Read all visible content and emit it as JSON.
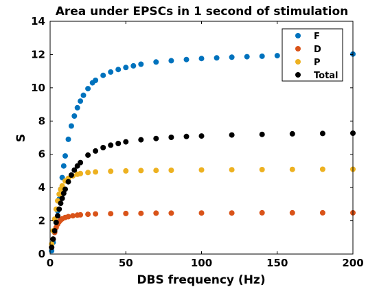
{
  "chart_data": {
    "type": "scatter",
    "title": "Area under EPSCs in 1 second of stimulation",
    "xlabel": "DBS frequency (Hz)",
    "ylabel": "S",
    "xlim": [
      0,
      200
    ],
    "ylim": [
      0,
      14
    ],
    "xticks": [
      0,
      50,
      100,
      150,
      200
    ],
    "yticks": [
      0,
      2,
      4,
      6,
      8,
      10,
      12,
      14
    ],
    "grid": false,
    "legend_position": "top-right",
    "series": [
      {
        "name": "F",
        "color": "#0072BD",
        "x": [
          1,
          2,
          3,
          4,
          5,
          6,
          7,
          8,
          9,
          10,
          12,
          14,
          16,
          18,
          20,
          22,
          25,
          28,
          30,
          35,
          40,
          45,
          50,
          55,
          60,
          70,
          80,
          90,
          100,
          110,
          120,
          130,
          140,
          150,
          160,
          170,
          180,
          190,
          200
        ],
        "y": [
          0.2,
          0.7,
          1.3,
          1.9,
          2.6,
          3.3,
          3.9,
          4.6,
          5.3,
          5.9,
          6.9,
          7.7,
          8.3,
          8.8,
          9.2,
          9.55,
          9.95,
          10.3,
          10.45,
          10.75,
          10.95,
          11.1,
          11.22,
          11.32,
          11.42,
          11.55,
          11.63,
          11.7,
          11.76,
          11.8,
          11.84,
          11.87,
          11.9,
          11.93,
          11.95,
          11.97,
          11.99,
          12.01,
          12.03
        ]
      },
      {
        "name": "D",
        "color": "#D95319",
        "x": [
          1,
          2,
          3,
          4,
          5,
          6,
          7,
          8,
          10,
          12,
          15,
          18,
          20,
          25,
          30,
          40,
          50,
          60,
          70,
          80,
          100,
          120,
          140,
          160,
          180,
          200
        ],
        "y": [
          0.4,
          0.9,
          1.3,
          1.6,
          1.8,
          1.95,
          2.05,
          2.12,
          2.2,
          2.25,
          2.3,
          2.34,
          2.36,
          2.39,
          2.41,
          2.43,
          2.44,
          2.45,
          2.46,
          2.46,
          2.47,
          2.47,
          2.48,
          2.48,
          2.48,
          2.48
        ]
      },
      {
        "name": "P",
        "color": "#EDB120",
        "x": [
          1,
          2,
          3,
          4,
          5,
          6,
          7,
          8,
          10,
          12,
          15,
          18,
          20,
          25,
          30,
          40,
          50,
          60,
          70,
          80,
          100,
          120,
          140,
          160,
          180,
          200
        ],
        "y": [
          0.6,
          1.4,
          2.1,
          2.7,
          3.2,
          3.6,
          3.9,
          4.1,
          4.4,
          4.55,
          4.7,
          4.8,
          4.84,
          4.9,
          4.94,
          4.98,
          5.0,
          5.02,
          5.03,
          5.04,
          5.06,
          5.07,
          5.08,
          5.09,
          5.1,
          5.1
        ]
      },
      {
        "name": "Total",
        "color": "#000000",
        "x": [
          1,
          2,
          3,
          4,
          5,
          6,
          7,
          8,
          9,
          10,
          12,
          14,
          16,
          18,
          20,
          25,
          30,
          35,
          40,
          45,
          50,
          60,
          70,
          80,
          90,
          100,
          120,
          140,
          160,
          180,
          200
        ],
        "y": [
          0.4,
          0.9,
          1.4,
          1.9,
          2.3,
          2.7,
          3.05,
          3.35,
          3.65,
          3.9,
          4.35,
          4.75,
          5.05,
          5.3,
          5.5,
          5.95,
          6.2,
          6.4,
          6.55,
          6.65,
          6.75,
          6.87,
          6.95,
          7.02,
          7.07,
          7.1,
          7.16,
          7.2,
          7.23,
          7.25,
          7.27
        ]
      }
    ]
  }
}
